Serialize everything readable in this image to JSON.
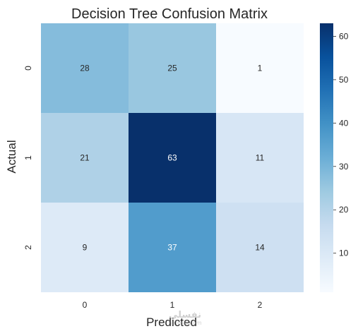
{
  "chart_data": {
    "type": "heatmap",
    "title": "Decision Tree Confusion Matrix",
    "xlabel": "Predicted",
    "ylabel": "Actual",
    "x_categories": [
      "0",
      "1",
      "2"
    ],
    "y_categories": [
      "0",
      "1",
      "2"
    ],
    "values": [
      [
        28,
        25,
        1
      ],
      [
        21,
        63,
        11
      ],
      [
        9,
        37,
        14
      ]
    ],
    "colormap": "Blues",
    "vmin": 1,
    "vmax": 63,
    "colorbar_ticks": [
      10,
      20,
      30,
      40,
      50,
      60
    ],
    "annotations": true
  },
  "watermark": {
    "text": "نفسلي",
    "domain": "nafesly.com"
  }
}
